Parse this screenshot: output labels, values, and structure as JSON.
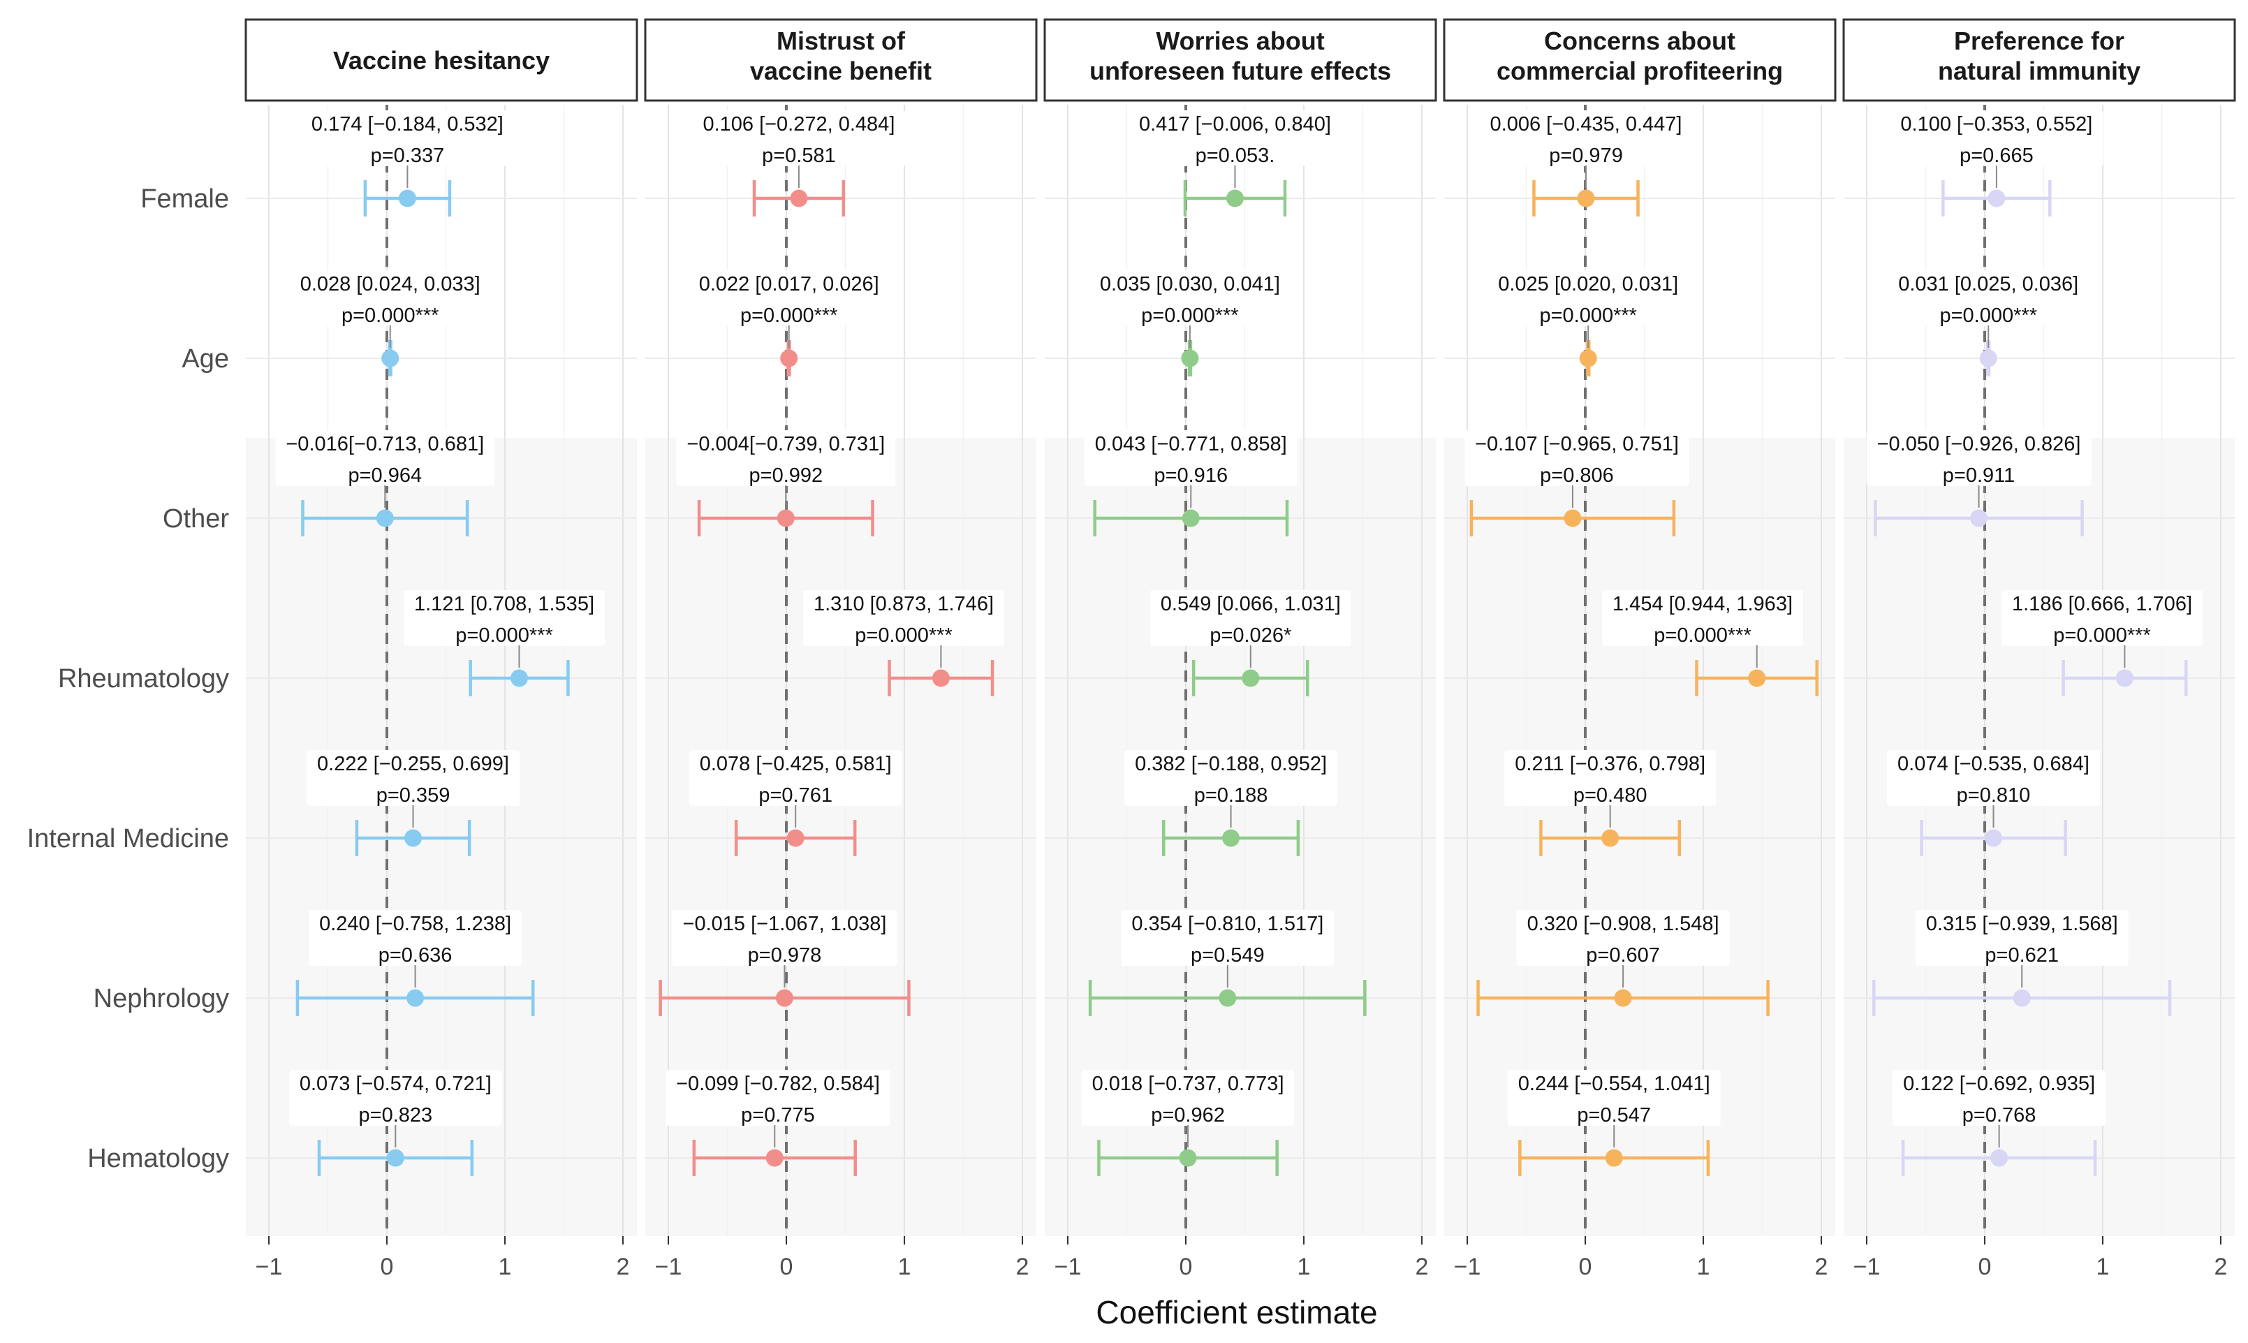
{
  "chart_data": {
    "type": "forest",
    "xlabel": "Coefficient estimate",
    "xlim": [
      -1.05,
      2.05
    ],
    "xticks": [
      "-1",
      "0",
      "1",
      "2"
    ],
    "xtick_labels": [
      "−1",
      "0",
      "1",
      "2"
    ],
    "reference_line": 0,
    "rows": [
      "Female",
      "Age",
      "Other",
      "Rheumatology",
      "Internal Medicine",
      "Nephrology",
      "Hematology"
    ],
    "shaded_rows": [
      "Other",
      "Rheumatology",
      "Internal Medicine",
      "Nephrology",
      "Hematology"
    ],
    "colors": [
      "#87cbf0",
      "#f28e8a",
      "#8fcc8a",
      "#f7b35c",
      "#d8d6f5"
    ],
    "panels": [
      {
        "title": [
          "Vaccine hesitancy"
        ],
        "points": [
          {
            "est": 0.174,
            "lo": -0.184,
            "hi": 0.532,
            "line1": "0.174 [−0.184, 0.532]",
            "line2": "p=0.337"
          },
          {
            "est": 0.028,
            "lo": 0.024,
            "hi": 0.033,
            "line1": "0.028 [0.024, 0.033]",
            "line2": "p=0.000***"
          },
          {
            "est": -0.016,
            "lo": -0.713,
            "hi": 0.681,
            "line1": "−0.016[−0.713, 0.681]",
            "line2": "p=0.964"
          },
          {
            "est": 1.121,
            "lo": 0.708,
            "hi": 1.535,
            "line1": "1.121 [0.708, 1.535]",
            "line2": "p=0.000***"
          },
          {
            "est": 0.222,
            "lo": -0.255,
            "hi": 0.699,
            "line1": "0.222 [−0.255, 0.699]",
            "line2": "p=0.359"
          },
          {
            "est": 0.24,
            "lo": -0.758,
            "hi": 1.238,
            "line1": "0.240 [−0.758, 1.238]",
            "line2": "p=0.636"
          },
          {
            "est": 0.073,
            "lo": -0.574,
            "hi": 0.721,
            "line1": "0.073 [−0.574, 0.721]",
            "line2": "p=0.823"
          }
        ]
      },
      {
        "title": [
          "Mistrust of",
          "vaccine benefit"
        ],
        "points": [
          {
            "est": 0.106,
            "lo": -0.272,
            "hi": 0.484,
            "line1": "0.106 [−0.272, 0.484]",
            "line2": "p=0.581"
          },
          {
            "est": 0.022,
            "lo": 0.017,
            "hi": 0.026,
            "line1": "0.022 [0.017, 0.026]",
            "line2": "p=0.000***"
          },
          {
            "est": -0.004,
            "lo": -0.739,
            "hi": 0.731,
            "line1": "−0.004[−0.739, 0.731]",
            "line2": "p=0.992"
          },
          {
            "est": 1.31,
            "lo": 0.873,
            "hi": 1.746,
            "line1": "1.310 [0.873, 1.746]",
            "line2": "p=0.000***"
          },
          {
            "est": 0.078,
            "lo": -0.425,
            "hi": 0.581,
            "line1": "0.078 [−0.425, 0.581]",
            "line2": "p=0.761"
          },
          {
            "est": -0.015,
            "lo": -1.067,
            "hi": 1.038,
            "line1": "−0.015 [−1.067, 1.038]",
            "line2": "p=0.978"
          },
          {
            "est": -0.099,
            "lo": -0.782,
            "hi": 0.584,
            "line1": "−0.099 [−0.782, 0.584]",
            "line2": "p=0.775"
          }
        ]
      },
      {
        "title": [
          "Worries about",
          "unforeseen future effects"
        ],
        "points": [
          {
            "est": 0.417,
            "lo": -0.006,
            "hi": 0.84,
            "line1": "0.417 [−0.006, 0.840]",
            "line2": "p=0.053."
          },
          {
            "est": 0.035,
            "lo": 0.03,
            "hi": 0.041,
            "line1": "0.035 [0.030, 0.041]",
            "line2": "p=0.000***"
          },
          {
            "est": 0.043,
            "lo": -0.771,
            "hi": 0.858,
            "line1": "0.043 [−0.771, 0.858]",
            "line2": "p=0.916"
          },
          {
            "est": 0.549,
            "lo": 0.066,
            "hi": 1.031,
            "line1": "0.549 [0.066, 1.031]",
            "line2": "p=0.026*"
          },
          {
            "est": 0.382,
            "lo": -0.188,
            "hi": 0.952,
            "line1": "0.382 [−0.188, 0.952]",
            "line2": "p=0.188"
          },
          {
            "est": 0.354,
            "lo": -0.81,
            "hi": 1.517,
            "line1": "0.354 [−0.810, 1.517]",
            "line2": "p=0.549"
          },
          {
            "est": 0.018,
            "lo": -0.737,
            "hi": 0.773,
            "line1": "0.018 [−0.737, 0.773]",
            "line2": "p=0.962"
          }
        ]
      },
      {
        "title": [
          "Concerns about",
          "commercial profiteering"
        ],
        "points": [
          {
            "est": 0.006,
            "lo": -0.435,
            "hi": 0.447,
            "line1": "0.006 [−0.435, 0.447]",
            "line2": "p=0.979"
          },
          {
            "est": 0.025,
            "lo": 0.02,
            "hi": 0.031,
            "line1": "0.025 [0.020, 0.031]",
            "line2": "p=0.000***"
          },
          {
            "est": -0.107,
            "lo": -0.965,
            "hi": 0.751,
            "line1": "−0.107 [−0.965, 0.751]",
            "line2": "p=0.806"
          },
          {
            "est": 1.454,
            "lo": 0.944,
            "hi": 1.963,
            "line1": "1.454 [0.944, 1.963]",
            "line2": "p=0.000***"
          },
          {
            "est": 0.211,
            "lo": -0.376,
            "hi": 0.798,
            "line1": "0.211 [−0.376, 0.798]",
            "line2": "p=0.480"
          },
          {
            "est": 0.32,
            "lo": -0.908,
            "hi": 1.548,
            "line1": "0.320 [−0.908, 1.548]",
            "line2": "p=0.607"
          },
          {
            "est": 0.244,
            "lo": -0.554,
            "hi": 1.041,
            "line1": "0.244 [−0.554, 1.041]",
            "line2": "p=0.547"
          }
        ]
      },
      {
        "title": [
          "Preference for",
          "natural immunity"
        ],
        "points": [
          {
            "est": 0.1,
            "lo": -0.353,
            "hi": 0.552,
            "line1": "0.100 [−0.353, 0.552]",
            "line2": "p=0.665"
          },
          {
            "est": 0.031,
            "lo": 0.025,
            "hi": 0.036,
            "line1": "0.031 [0.025, 0.036]",
            "line2": "p=0.000***"
          },
          {
            "est": -0.05,
            "lo": -0.926,
            "hi": 0.826,
            "line1": "−0.050 [−0.926, 0.826]",
            "line2": "p=0.911"
          },
          {
            "est": 1.186,
            "lo": 0.666,
            "hi": 1.706,
            "line1": "1.186 [0.666, 1.706]",
            "line2": "p=0.000***"
          },
          {
            "est": 0.074,
            "lo": -0.535,
            "hi": 0.684,
            "line1": "0.074 [−0.535, 0.684]",
            "line2": "p=0.810"
          },
          {
            "est": 0.315,
            "lo": -0.939,
            "hi": 1.568,
            "line1": "0.315 [−0.939, 1.568]",
            "line2": "p=0.621"
          },
          {
            "est": 0.122,
            "lo": -0.692,
            "hi": 0.935,
            "line1": "0.122 [−0.692, 0.935]",
            "line2": "p=0.768"
          }
        ]
      }
    ]
  }
}
